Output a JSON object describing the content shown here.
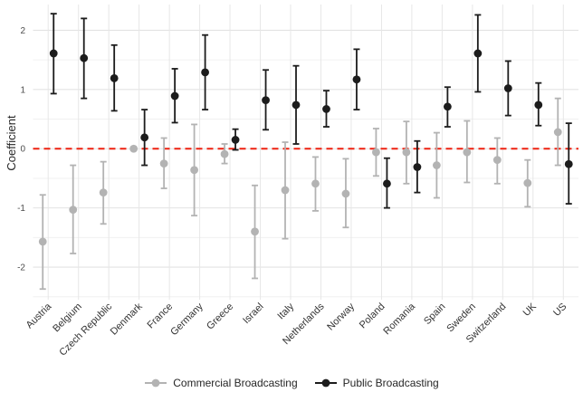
{
  "chart_data": {
    "type": "scatter",
    "subtype": "pointrange-coefficient-plot",
    "title": "",
    "xlabel": "",
    "ylabel": "Coefficient",
    "ylim": [
      -2.55,
      2.435
    ],
    "yticks": [
      -2,
      -1,
      0,
      1,
      2
    ],
    "minor_yticks": [
      -2.5,
      -1.5,
      -0.5,
      0.5,
      1.5
    ],
    "grid": "on",
    "legend_position": "bottom",
    "reference_line": {
      "y": 0,
      "color": "#ee2211",
      "style": "dashed"
    },
    "colors": {
      "background": "#ffffff",
      "major_grid": "#e3e3e3",
      "minor_grid": "#f0f0f0",
      "axis_text": "#4d4d4d",
      "x_label_text": "#333333"
    },
    "categories": [
      "Austria",
      "Belgium",
      "Czech Republic",
      "Denmark",
      "France",
      "Germany",
      "Greece",
      "Israel",
      "Italy",
      "Netherlands",
      "Norway",
      "Poland",
      "Romania",
      "Spain",
      "Sweden",
      "Switzerland",
      "UK",
      "US"
    ],
    "series": [
      {
        "name": "Commercial Broadcasting",
        "color": "#b3b3b3",
        "values": [
          -1.57,
          -1.03,
          -0.74,
          0.0,
          -0.25,
          -0.36,
          -0.09,
          -1.4,
          -0.7,
          -0.59,
          -0.76,
          -0.06,
          -0.06,
          -0.28,
          -0.06,
          -0.19,
          -0.58,
          0.28
        ],
        "ci_low": [
          -2.37,
          -1.77,
          -1.27,
          0.0,
          -0.67,
          -1.13,
          -0.25,
          -2.19,
          -1.52,
          -1.05,
          -1.33,
          -0.46,
          -0.59,
          -0.83,
          -0.57,
          -0.59,
          -0.98,
          -0.28
        ],
        "ci_high": [
          -0.78,
          -0.28,
          -0.22,
          0.0,
          0.18,
          0.41,
          0.08,
          -0.62,
          0.11,
          -0.14,
          -0.17,
          0.34,
          0.46,
          0.27,
          0.47,
          0.18,
          -0.19,
          0.85
        ]
      },
      {
        "name": "Public Broadcasting",
        "color": "#1c1c1c",
        "values": [
          1.61,
          1.53,
          1.19,
          0.19,
          0.89,
          1.29,
          0.15,
          0.82,
          0.74,
          0.67,
          1.17,
          -0.59,
          -0.31,
          0.71,
          1.61,
          1.02,
          0.74,
          -0.26
        ],
        "ci_low": [
          0.93,
          0.85,
          0.64,
          -0.28,
          0.44,
          0.66,
          -0.02,
          0.32,
          0.08,
          0.37,
          0.66,
          -1.0,
          -0.74,
          0.37,
          0.96,
          0.56,
          0.39,
          -0.93
        ],
        "ci_high": [
          2.28,
          2.2,
          1.75,
          0.66,
          1.35,
          1.92,
          0.33,
          1.33,
          1.4,
          0.98,
          1.68,
          -0.16,
          0.13,
          1.04,
          2.26,
          1.48,
          1.11,
          0.43
        ]
      }
    ]
  }
}
